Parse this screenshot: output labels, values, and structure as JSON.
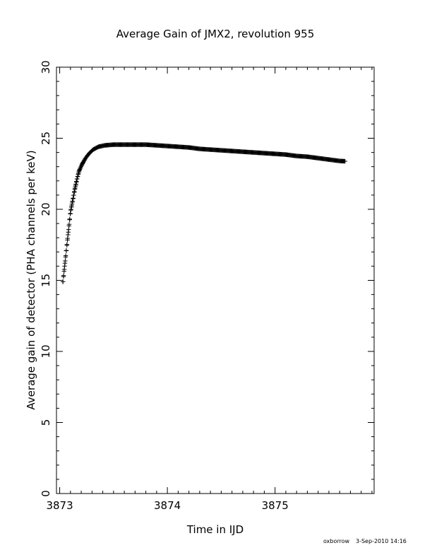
{
  "chart_data": {
    "type": "scatter",
    "title": "Average Gain of JMX2, revolution 955",
    "xlabel": "Time in IJD",
    "ylabel": "Average gain of detector (PHA channels per keV)",
    "xlim": [
      3872.97,
      3875.92
    ],
    "ylim": [
      0,
      30
    ],
    "xticks": [
      3873,
      3874,
      3875
    ],
    "xtick_labels": [
      "3873",
      "3874",
      "3875"
    ],
    "yticks": [
      0,
      5,
      10,
      15,
      20,
      25,
      30
    ],
    "ytick_labels": [
      "0",
      "5",
      "10",
      "15",
      "20",
      "25",
      "30"
    ],
    "marker": "plus",
    "grid": false,
    "series": [
      {
        "color": "#000000",
        "points": [
          [
            3873.03,
            14.9
          ],
          [
            3873.04,
            15.6
          ],
          [
            3873.05,
            16.3
          ],
          [
            3873.06,
            17.0
          ],
          [
            3873.07,
            17.7
          ],
          [
            3873.08,
            18.4
          ],
          [
            3873.09,
            19.1
          ],
          [
            3873.1,
            19.8
          ],
          [
            3873.12,
            20.6
          ],
          [
            3873.14,
            21.4
          ],
          [
            3873.16,
            22.1
          ],
          [
            3873.18,
            22.7
          ],
          [
            3873.21,
            23.2
          ],
          [
            3873.24,
            23.6
          ],
          [
            3873.27,
            23.9
          ],
          [
            3873.31,
            24.2
          ],
          [
            3873.36,
            24.4
          ],
          [
            3873.42,
            24.5
          ],
          [
            3873.5,
            24.55
          ],
          [
            3873.6,
            24.55
          ],
          [
            3873.7,
            24.55
          ],
          [
            3873.8,
            24.55
          ],
          [
            3873.9,
            24.5
          ],
          [
            3874.0,
            24.45
          ],
          [
            3874.1,
            24.4
          ],
          [
            3874.2,
            24.35
          ],
          [
            3874.3,
            24.25
          ],
          [
            3874.4,
            24.2
          ],
          [
            3874.5,
            24.15
          ],
          [
            3874.6,
            24.1
          ],
          [
            3874.7,
            24.05
          ],
          [
            3874.8,
            24.0
          ],
          [
            3874.9,
            23.95
          ],
          [
            3875.0,
            23.9
          ],
          [
            3875.1,
            23.85
          ],
          [
            3875.2,
            23.75
          ],
          [
            3875.3,
            23.7
          ],
          [
            3875.4,
            23.6
          ],
          [
            3875.5,
            23.5
          ],
          [
            3875.6,
            23.4
          ],
          [
            3875.65,
            23.38
          ]
        ]
      }
    ]
  },
  "footer": {
    "author": "oxborrow",
    "datetime": "3-Sep-2010 14:16"
  }
}
